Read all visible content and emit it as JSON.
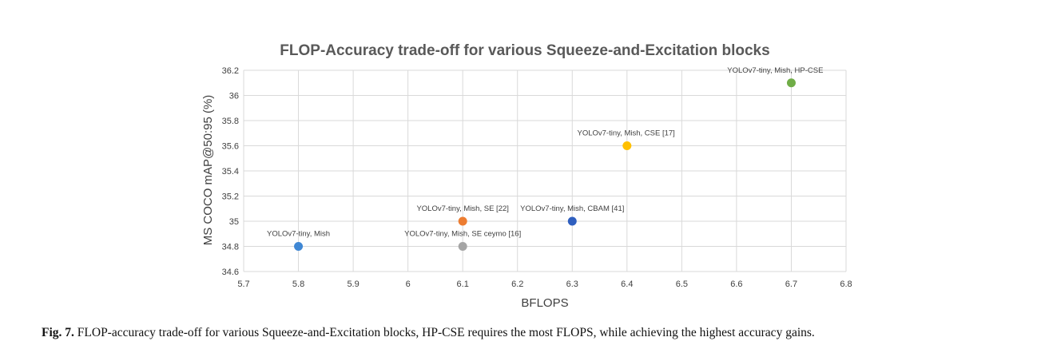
{
  "chart_data": {
    "type": "scatter",
    "title": "FLOP-Accuracy trade-off for various Squeeze-and-Excitation blocks",
    "xlabel": "BFLOPS",
    "ylabel": "MS COCO mAP@50:95 (%)",
    "xlim": [
      5.7,
      6.8
    ],
    "ylim": [
      34.6,
      36.2
    ],
    "xticks": [
      "5.7",
      "5.8",
      "5.9",
      "6",
      "6.1",
      "6.2",
      "6.3",
      "6.4",
      "6.5",
      "6.6",
      "6.7",
      "6.8"
    ],
    "yticks": [
      "34.6",
      "34.8",
      "35",
      "35.2",
      "35.4",
      "35.6",
      "35.8",
      "36",
      "36.2"
    ],
    "grid": true,
    "points": [
      {
        "label": "YOLOv7-tiny, Mish",
        "x": 5.8,
        "y": 34.8,
        "color": "#3f87d4"
      },
      {
        "label": "YOLOv7-tiny, Mish, SE [22]",
        "x": 6.1,
        "y": 35.0,
        "color": "#ed7d31"
      },
      {
        "label": "YOLOv7-tiny, Mish, SE ceymo [16]",
        "x": 6.1,
        "y": 34.8,
        "color": "#a5a5a5"
      },
      {
        "label": "YOLOv7-tiny, Mish, CBAM [41]",
        "x": 6.3,
        "y": 35.0,
        "color": "#2f5fbf"
      },
      {
        "label": "YOLOv7-tiny, Mish, CSE [17]",
        "x": 6.4,
        "y": 35.6,
        "color": "#ffc000"
      },
      {
        "label": "YOLOv7-tiny, Mish, HP-CSE",
        "x": 6.7,
        "y": 36.1,
        "color": "#70ad47"
      }
    ]
  },
  "caption": {
    "prefix": "Fig. 7.",
    "text": "FLOP-accuracy trade-off for various Squeeze-and-Excitation blocks, HP-CSE requires the most FLOPS, while achieving the highest accuracy gains."
  }
}
